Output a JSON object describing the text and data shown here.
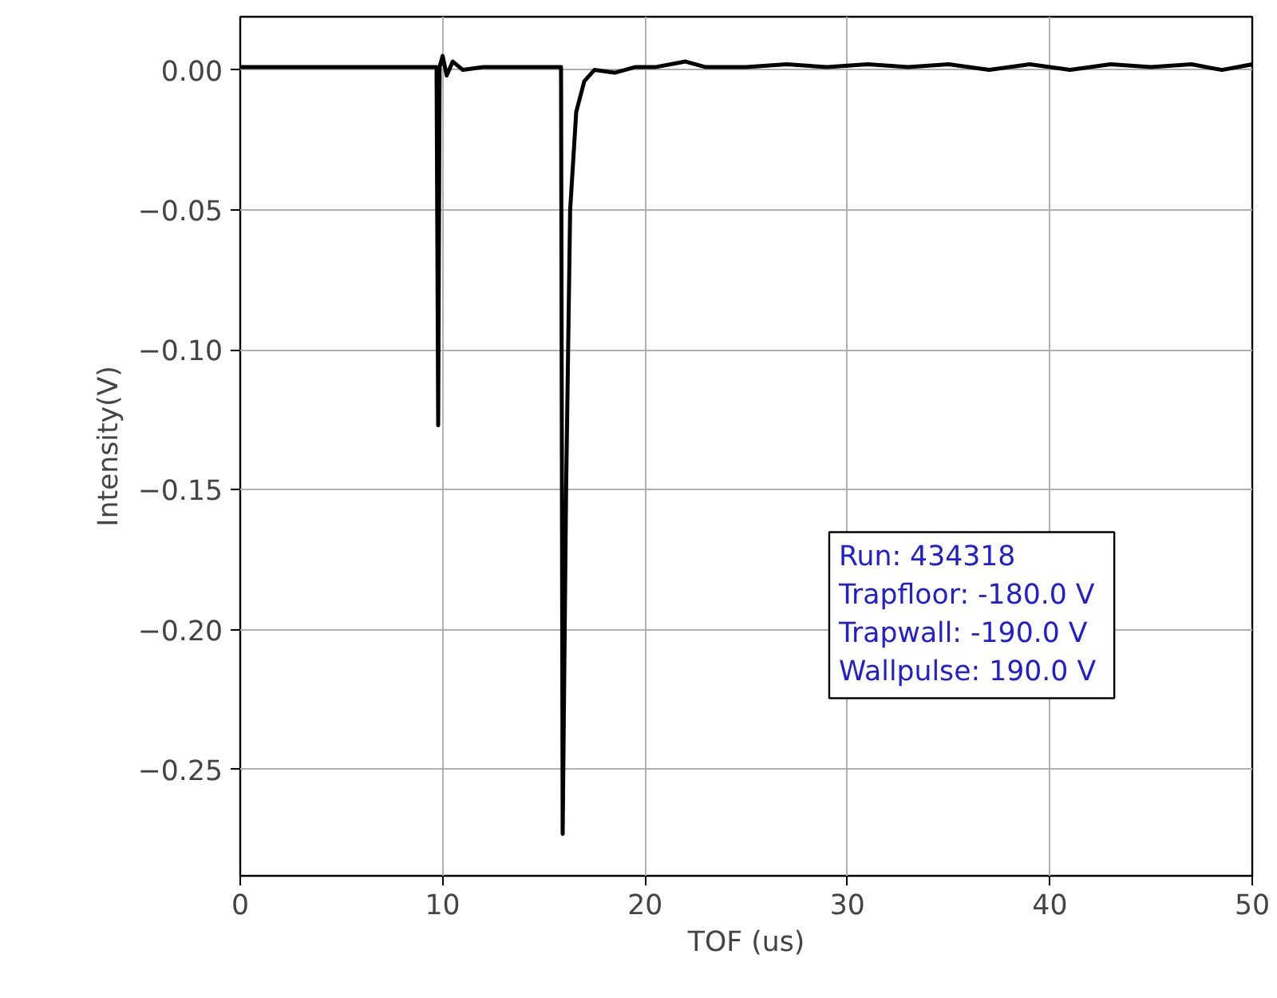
{
  "chart_data": {
    "type": "line",
    "xlabel": "TOF (us)",
    "ylabel": "Intensity(V)",
    "x": [
      0,
      9.7,
      9.78,
      9.85,
      10.0,
      10.2,
      10.5,
      11,
      12,
      15.85,
      15.93,
      16.1,
      16.3,
      16.6,
      17,
      17.5,
      18.5,
      19.5,
      20.5,
      22,
      23,
      25,
      27,
      29,
      31,
      33,
      35,
      37,
      39,
      41,
      43,
      45,
      47,
      48.5,
      50
    ],
    "series": [
      {
        "color": "#000000",
        "values": [
          0.001,
          0.001,
          -0.127,
          0.001,
          0.005,
          -0.002,
          0.003,
          0.0,
          0.001,
          0.001,
          -0.273,
          -0.15,
          -0.05,
          -0.015,
          -0.004,
          0.0,
          -0.001,
          0.001,
          0.001,
          0.003,
          0.001,
          0.001,
          0.002,
          0.001,
          0.002,
          0.001,
          0.002,
          0.0,
          0.002,
          0.0,
          0.002,
          0.001,
          0.002,
          0.0,
          0.002
        ]
      }
    ],
    "xlim": [
      0,
      50
    ],
    "xticks": [
      0,
      10,
      20,
      30,
      40,
      50
    ],
    "ylim": [
      -0.288,
      0.019
    ],
    "yticks": [
      {
        "value": 0,
        "label": "0.00"
      },
      {
        "value": -0.05,
        "label": "−0.05"
      },
      {
        "value": -0.1,
        "label": "−0.10"
      },
      {
        "value": -0.15,
        "label": "−0.15"
      },
      {
        "value": -0.2,
        "label": "−0.20"
      },
      {
        "value": -0.25,
        "label": "−0.25"
      }
    ],
    "grid": true,
    "line_style": "solid",
    "annotations": [
      "Run: 434318",
      " Trapfloor: -180.0 V",
      " Trapwall: -190.0 V",
      " Wallpulse: 190.0 V"
    ]
  }
}
